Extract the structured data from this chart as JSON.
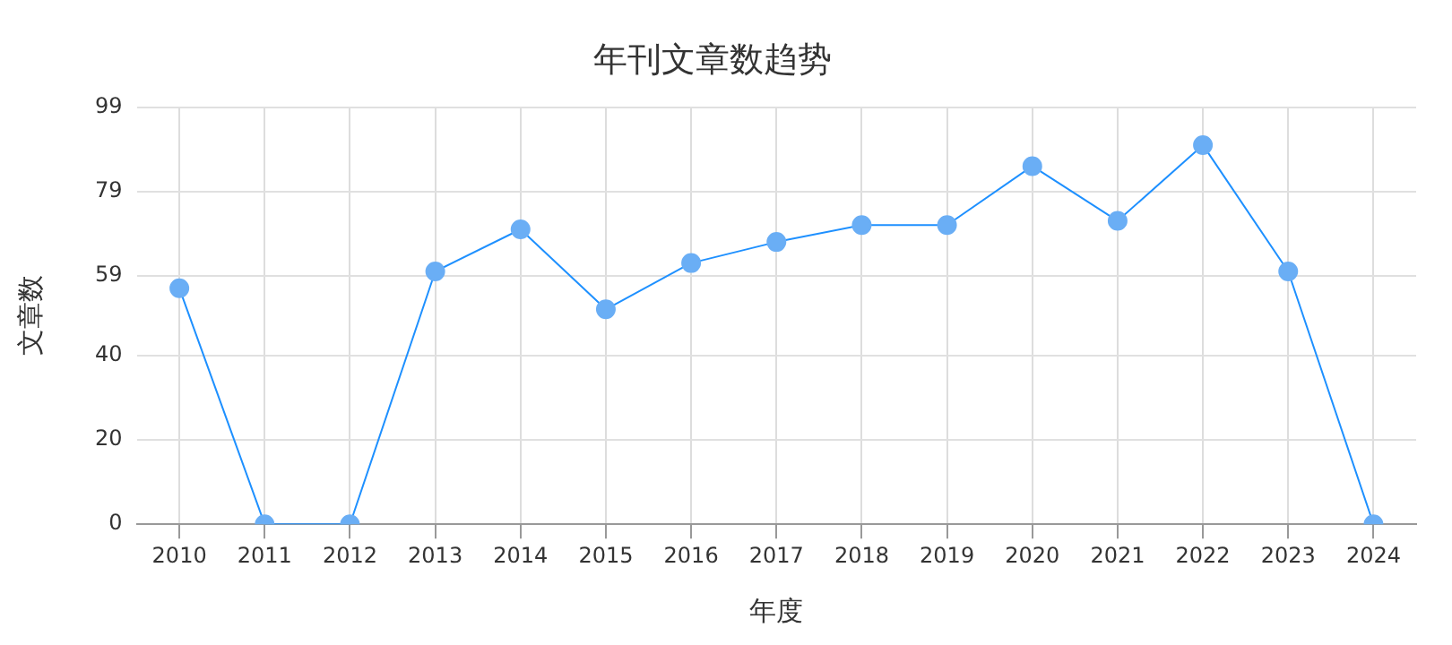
{
  "chart_data": {
    "type": "line",
    "title": "年刊文章数趋势",
    "xlabel": "年度",
    "ylabel": "文章数",
    "categories": [
      "2010",
      "2011",
      "2012",
      "2013",
      "2014",
      "2015",
      "2016",
      "2017",
      "2018",
      "2019",
      "2020",
      "2021",
      "2022",
      "2023",
      "2024"
    ],
    "series": [
      {
        "color": "#1e90ff",
        "values": [
          56,
          0,
          0,
          60,
          70,
          51,
          62,
          67,
          71,
          71,
          85,
          72,
          90,
          60,
          0
        ]
      }
    ],
    "ylim": [
      0,
      99
    ],
    "yticks": [
      0,
      20,
      40,
      59,
      79,
      99
    ],
    "grid": true,
    "marker": "circle",
    "line_style": "solid",
    "legend": false
  }
}
